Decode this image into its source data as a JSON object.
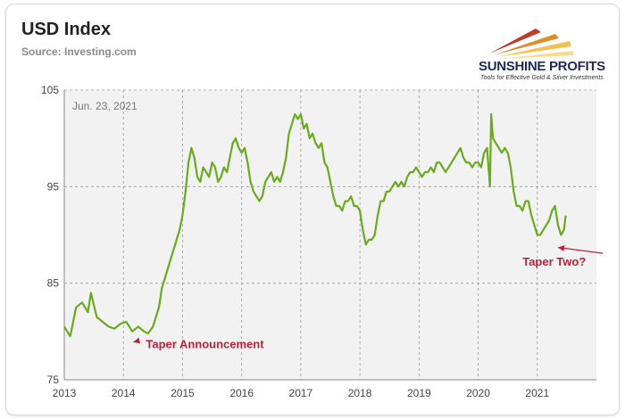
{
  "header": {
    "title": "USD Index",
    "source": "Source: Investing.com"
  },
  "logo": {
    "name": "SUNSHINE PROFITS",
    "tagline": "Tools for Effective Gold & Silver Investments"
  },
  "chart_data": {
    "type": "line",
    "title": "USD Index",
    "date_label": "Jun. 23, 2021",
    "xlabel": "",
    "ylabel": "",
    "xlim": [
      2013.0,
      2022.0
    ],
    "ylim": [
      75,
      105
    ],
    "yticks": [
      75,
      85,
      95,
      105
    ],
    "xticks": [
      "2013",
      "2014",
      "2015",
      "2016",
      "2017",
      "2018",
      "2019",
      "2020",
      "2021"
    ],
    "grid": true,
    "line_color": "#6aaa1e",
    "series": [
      {
        "x": [
          2013.0,
          2013.05,
          2013.1,
          2013.2,
          2013.3,
          2013.4,
          2013.45,
          2013.55,
          2013.65,
          2013.75,
          2013.85,
          2013.95,
          2014.05,
          2014.15,
          2014.25,
          2014.35,
          2014.42,
          2014.5,
          2014.55,
          2014.6,
          2014.65,
          2014.7,
          2014.75,
          2014.8,
          2014.85,
          2014.9,
          2014.95,
          2015.0,
          2015.05,
          2015.1,
          2015.15,
          2015.2,
          2015.25,
          2015.3,
          2015.35,
          2015.4,
          2015.45,
          2015.5,
          2015.55,
          2015.6,
          2015.65,
          2015.7,
          2015.75,
          2015.8,
          2015.85,
          2015.9,
          2015.95,
          2016.0,
          2016.05,
          2016.1,
          2016.15,
          2016.2,
          2016.25,
          2016.3,
          2016.35,
          2016.4,
          2016.45,
          2016.5,
          2016.55,
          2016.6,
          2016.65,
          2016.7,
          2016.75,
          2016.8,
          2016.85,
          2016.9,
          2016.95,
          2017.0,
          2017.05,
          2017.1,
          2017.15,
          2017.2,
          2017.25,
          2017.3,
          2017.35,
          2017.4,
          2017.45,
          2017.5,
          2017.55,
          2017.6,
          2017.65,
          2017.7,
          2017.75,
          2017.8,
          2017.85,
          2017.9,
          2017.95,
          2018.0,
          2018.05,
          2018.1,
          2018.15,
          2018.2,
          2018.25,
          2018.3,
          2018.35,
          2018.4,
          2018.45,
          2018.5,
          2018.55,
          2018.6,
          2018.65,
          2018.7,
          2018.75,
          2018.8,
          2018.85,
          2018.9,
          2018.95,
          2019.0,
          2019.05,
          2019.1,
          2019.15,
          2019.2,
          2019.25,
          2019.3,
          2019.35,
          2019.4,
          2019.45,
          2019.5,
          2019.55,
          2019.6,
          2019.65,
          2019.7,
          2019.75,
          2019.8,
          2019.85,
          2019.9,
          2019.95,
          2020.0,
          2020.05,
          2020.1,
          2020.15,
          2020.2,
          2020.22,
          2020.25,
          2020.3,
          2020.35,
          2020.4,
          2020.45,
          2020.5,
          2020.55,
          2020.6,
          2020.65,
          2020.7,
          2020.75,
          2020.8,
          2020.85,
          2020.9,
          2020.95,
          2021.0,
          2021.05,
          2021.1,
          2021.15,
          2021.2,
          2021.25,
          2021.3,
          2021.35,
          2021.4,
          2021.45,
          2021.48
        ],
        "y": [
          80.5,
          80.0,
          79.5,
          82.5,
          83.0,
          82.0,
          84.0,
          81.5,
          81.0,
          80.5,
          80.3,
          80.8,
          81.0,
          80.0,
          80.5,
          80.0,
          79.8,
          80.5,
          81.5,
          82.5,
          84.5,
          85.5,
          86.5,
          87.5,
          88.5,
          89.5,
          90.5,
          92.0,
          94.5,
          97.5,
          99.0,
          98.0,
          96.0,
          95.5,
          97.0,
          96.5,
          96.0,
          97.5,
          97.0,
          95.5,
          96.0,
          97.0,
          96.5,
          98.0,
          99.5,
          100.0,
          99.0,
          98.5,
          99.0,
          97.5,
          95.5,
          94.5,
          94.0,
          93.5,
          94.0,
          95.5,
          96.0,
          96.5,
          95.5,
          96.0,
          95.5,
          96.5,
          98.0,
          100.5,
          101.5,
          102.5,
          102.0,
          102.5,
          101.0,
          101.5,
          100.0,
          100.5,
          99.5,
          99.0,
          99.5,
          97.5,
          97.0,
          95.5,
          94.0,
          93.0,
          93.0,
          92.5,
          93.5,
          93.5,
          94.0,
          93.0,
          93.0,
          92.5,
          90.5,
          89.0,
          89.5,
          89.5,
          90.0,
          92.0,
          93.5,
          93.5,
          94.5,
          94.5,
          95.0,
          95.5,
          95.0,
          95.5,
          95.0,
          96.0,
          96.5,
          96.5,
          97.0,
          96.5,
          96.0,
          96.5,
          96.5,
          97.0,
          96.5,
          97.5,
          97.5,
          97.0,
          96.5,
          97.0,
          97.5,
          98.0,
          98.5,
          99.0,
          98.0,
          97.5,
          97.5,
          97.0,
          97.5,
          97.5,
          97.0,
          98.5,
          99.0,
          95.0,
          102.5,
          100.0,
          99.5,
          99.0,
          98.5,
          99.0,
          98.5,
          97.0,
          94.5,
          93.0,
          93.0,
          92.5,
          93.5,
          93.5,
          92.0,
          91.0,
          90.0,
          90.0,
          90.5,
          91.0,
          91.5,
          92.5,
          93.0,
          91.0,
          90.0,
          90.5,
          92.0
        ]
      }
    ],
    "annotations": [
      {
        "text": "Taper Announcement",
        "x": 2014.38,
        "y": 78.3,
        "arrow_to_x": 2014.17,
        "arrow_to_y": 78.9,
        "color": "#b8233a"
      },
      {
        "text": "Taper Two?",
        "x": 2020.75,
        "y": 86.8,
        "arrow_to_x": 2021.35,
        "arrow_to_y": 88.7,
        "color": "#b8233a"
      }
    ]
  }
}
